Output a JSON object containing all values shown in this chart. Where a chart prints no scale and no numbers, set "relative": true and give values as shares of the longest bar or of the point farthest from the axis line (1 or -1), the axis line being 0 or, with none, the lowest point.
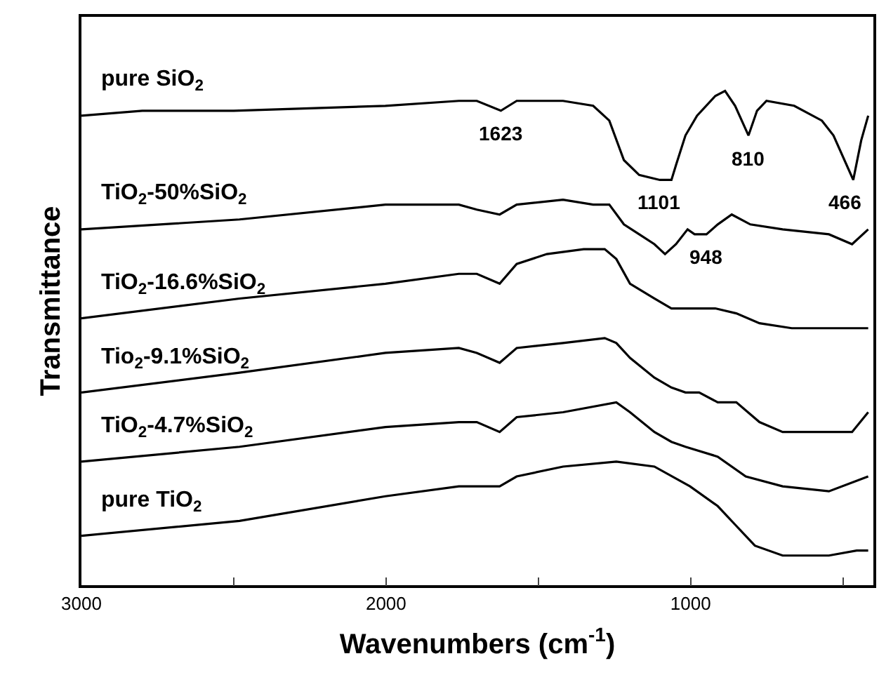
{
  "chart_data": {
    "type": "line",
    "relative": true,
    "xlabel": "Wavenumbers (cm$^{-1}$)",
    "ylabel": "Transmittance",
    "xlim": [
      3000,
      400
    ],
    "xticks": [
      3000,
      {
        "value": 2500,
        "label": null
      },
      2000,
      {
        "value": 1500,
        "label": null
      },
      1000,
      {
        "value": 500,
        "label": null
      }
    ],
    "legend": false,
    "marker": "none",
    "line_style": "solid",
    "series": [
      {
        "name": "pure SiO$_{2}$",
        "color": "#000000",
        "x": [
          3000,
          2800,
          2500,
          2002,
          1761,
          1702,
          1623,
          1571,
          1419,
          1320,
          1267,
          1219,
          1169,
          1101,
          1063,
          1048,
          1017,
          979,
          919,
          887,
          854,
          810,
          782,
          751,
          660,
          569,
          531,
          466,
          440,
          417
        ],
        "values": [
          0.95,
          0.96,
          0.96,
          0.97,
          0.98,
          0.98,
          0.96,
          0.98,
          0.98,
          0.97,
          0.94,
          0.86,
          0.83,
          0.82,
          0.82,
          0.85,
          0.91,
          0.95,
          0.99,
          1.0,
          0.97,
          0.91,
          0.96,
          0.98,
          0.97,
          0.94,
          0.91,
          0.82,
          0.9,
          0.95
        ]
      },
      {
        "name": "TiO$_{2}$-50%SiO$_{2}$",
        "color": "#000000",
        "x": [
          3000,
          2481,
          2002,
          1761,
          1702,
          1627,
          1571,
          1419,
          1320,
          1267,
          1219,
          1169,
          1119,
          1084,
          1048,
          1010,
          987,
          948,
          911,
          865,
          804,
          698,
          546,
          470,
          417
        ],
        "values": [
          0.72,
          0.74,
          0.77,
          0.77,
          0.76,
          0.75,
          0.77,
          0.78,
          0.77,
          0.77,
          0.73,
          0.71,
          0.69,
          0.67,
          0.69,
          0.72,
          0.71,
          0.71,
          0.73,
          0.75,
          0.73,
          0.72,
          0.71,
          0.69,
          0.72
        ]
      },
      {
        "name": "TiO$_{2}$-16.6%SiO$_{2}$",
        "color": "#000000",
        "x": [
          3000,
          2481,
          2002,
          1761,
          1702,
          1627,
          1571,
          1472,
          1351,
          1282,
          1244,
          1199,
          1119,
          1063,
          1010,
          972,
          919,
          850,
          774,
          668,
          485,
          417
        ],
        "values": [
          0.54,
          0.58,
          0.61,
          0.63,
          0.63,
          0.61,
          0.65,
          0.67,
          0.68,
          0.68,
          0.66,
          0.61,
          0.58,
          0.56,
          0.56,
          0.56,
          0.56,
          0.55,
          0.53,
          0.52,
          0.52,
          0.52
        ]
      },
      {
        "name": "Tio$_{2}$-9.1%SiO$_{2}$",
        "color": "#000000",
        "x": [
          3000,
          2481,
          2002,
          1761,
          1702,
          1627,
          1571,
          1419,
          1282,
          1244,
          1199,
          1119,
          1063,
          1017,
          972,
          911,
          850,
          774,
          698,
          546,
          470,
          417
        ],
        "values": [
          0.39,
          0.43,
          0.47,
          0.48,
          0.47,
          0.45,
          0.48,
          0.49,
          0.5,
          0.49,
          0.46,
          0.42,
          0.4,
          0.39,
          0.39,
          0.37,
          0.37,
          0.33,
          0.31,
          0.31,
          0.31,
          0.35
        ]
      },
      {
        "name": "TiO$_{2}$-4.7%SiO$_{2}$",
        "color": "#000000",
        "x": [
          3000,
          2481,
          2002,
          1761,
          1702,
          1627,
          1571,
          1419,
          1244,
          1199,
          1119,
          1063,
          1017,
          911,
          819,
          698,
          546,
          417
        ],
        "values": [
          0.25,
          0.28,
          0.32,
          0.33,
          0.33,
          0.31,
          0.34,
          0.35,
          0.37,
          0.35,
          0.31,
          0.29,
          0.28,
          0.26,
          0.22,
          0.2,
          0.19,
          0.22
        ]
      },
      {
        "name": "pure TiO$_{2}$",
        "color": "#000000",
        "x": [
          3000,
          2481,
          2002,
          1761,
          1627,
          1571,
          1419,
          1244,
          1119,
          1002,
          911,
          850,
          789,
          698,
          546,
          455,
          417
        ],
        "values": [
          0.1,
          0.13,
          0.18,
          0.2,
          0.2,
          0.22,
          0.24,
          0.25,
          0.24,
          0.2,
          0.16,
          0.12,
          0.08,
          0.06,
          0.06,
          0.07,
          0.07
        ]
      }
    ],
    "annotations": [
      {
        "text": "1623",
        "x": 1623,
        "y": 0.96
      },
      {
        "text": "1101",
        "x": 1101,
        "y": 0.82
      },
      {
        "text": "810",
        "x": 810,
        "y": 0.91
      },
      {
        "text": "466",
        "x": 466,
        "y": 0.82
      },
      {
        "text": "948",
        "x": 948,
        "y": 0.71
      }
    ]
  }
}
